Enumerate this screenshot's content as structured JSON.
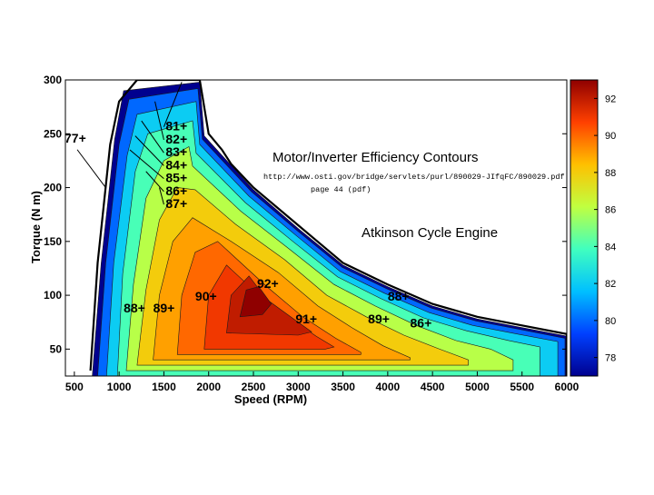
{
  "chart_data": {
    "type": "heatmap",
    "title": "Motor/Inverter Efficiency Contours",
    "source_url": "http://www.osti.gov/bridge/servlets/purl/890029-JIfqFC/890029.pdf",
    "source_page": "page 44 (pdf)",
    "annotation": "Atkinson Cycle Engine",
    "xlabel": "Speed (RPM)",
    "ylabel": "Torque (N m)",
    "xlim": [
      400,
      6000
    ],
    "ylim": [
      25,
      300
    ],
    "xticks": [
      "500",
      "1000",
      "1500",
      "2000",
      "2500",
      "3000",
      "3500",
      "4000",
      "4500",
      "5000",
      "5500",
      "6000"
    ],
    "yticks": [
      "50",
      "100",
      "150",
      "200",
      "250",
      "300"
    ],
    "colorbar": {
      "range": [
        77,
        93
      ],
      "ticks": [
        "78",
        "80",
        "82",
        "84",
        "86",
        "88",
        "90",
        "92"
      ],
      "colors": [
        "#00008f",
        "#0040ff",
        "#00c0ff",
        "#40ffbf",
        "#c0ff40",
        "#ffc000",
        "#ff4000",
        "#8f0000"
      ]
    },
    "max_torque_envelope": [
      [
        680,
        30
      ],
      [
        760,
        130
      ],
      [
        900,
        240
      ],
      [
        1000,
        280
      ],
      [
        1200,
        300
      ],
      [
        1900,
        300
      ],
      [
        2000,
        250
      ],
      [
        2150,
        235
      ],
      [
        2250,
        222
      ],
      [
        2500,
        200
      ],
      [
        3000,
        165
      ],
      [
        3500,
        130
      ],
      [
        4000,
        110
      ],
      [
        4500,
        92
      ],
      [
        5000,
        80
      ],
      [
        5500,
        72
      ],
      [
        6000,
        64
      ],
      [
        6000,
        25
      ]
    ],
    "contours": [
      {
        "level": 77,
        "points": [
          [
            700,
            25
          ],
          [
            800,
            130
          ],
          [
            950,
            245
          ],
          [
            1050,
            290
          ],
          [
            1900,
            298
          ],
          [
            1950,
            248
          ],
          [
            2500,
            198
          ],
          [
            3000,
            162
          ],
          [
            3500,
            128
          ],
          [
            4000,
            108
          ],
          [
            4500,
            90
          ],
          [
            5000,
            78
          ],
          [
            5500,
            70
          ],
          [
            6000,
            62
          ],
          [
            6000,
            25
          ]
        ]
      },
      {
        "level": 80,
        "points": [
          [
            760,
            25
          ],
          [
            850,
            130
          ],
          [
            1000,
            240
          ],
          [
            1110,
            282
          ],
          [
            1880,
            292
          ],
          [
            1930,
            245
          ],
          [
            2480,
            196
          ],
          [
            2990,
            160
          ],
          [
            3490,
            126
          ],
          [
            3990,
            106
          ],
          [
            4490,
            88
          ],
          [
            4990,
            76
          ],
          [
            5490,
            68
          ],
          [
            5980,
            60
          ],
          [
            5980,
            25
          ]
        ]
      },
      {
        "level": 82,
        "points": [
          [
            860,
            25
          ],
          [
            940,
            130
          ],
          [
            1090,
            230
          ],
          [
            1200,
            268
          ],
          [
            1860,
            280
          ],
          [
            1900,
            240
          ],
          [
            2450,
            192
          ],
          [
            2970,
            156
          ],
          [
            3470,
            122
          ],
          [
            3960,
            102
          ],
          [
            4460,
            84
          ],
          [
            4950,
            72
          ],
          [
            5450,
            64
          ],
          [
            5900,
            57
          ],
          [
            5900,
            25
          ]
        ]
      },
      {
        "level": 84,
        "points": [
          [
            980,
            25
          ],
          [
            1040,
            120
          ],
          [
            1180,
            215
          ],
          [
            1320,
            250
          ],
          [
            1820,
            262
          ],
          [
            1860,
            232
          ],
          [
            2410,
            186
          ],
          [
            2940,
            150
          ],
          [
            3440,
            117
          ],
          [
            3920,
            97
          ],
          [
            4400,
            79
          ],
          [
            4880,
            67
          ],
          [
            5350,
            58
          ],
          [
            5700,
            52
          ],
          [
            5700,
            25
          ]
        ]
      },
      {
        "level": 86,
        "points": [
          [
            1080,
            30
          ],
          [
            1160,
            110
          ],
          [
            1300,
            190
          ],
          [
            1500,
            225
          ],
          [
            1780,
            238
          ],
          [
            1820,
            220
          ],
          [
            2360,
            178
          ],
          [
            2900,
            143
          ],
          [
            3400,
            110
          ],
          [
            3860,
            90
          ],
          [
            4320,
            72
          ],
          [
            4760,
            58
          ],
          [
            5150,
            50
          ],
          [
            5400,
            40
          ],
          [
            5400,
            30
          ]
        ]
      },
      {
        "level": 88,
        "points": [
          [
            1200,
            35
          ],
          [
            1300,
            105
          ],
          [
            1450,
            170
          ],
          [
            1650,
            200
          ],
          [
            1850,
            198
          ],
          [
            2300,
            166
          ],
          [
            2850,
            133
          ],
          [
            3320,
            100
          ],
          [
            3760,
            80
          ],
          [
            4180,
            63
          ],
          [
            4580,
            50
          ],
          [
            4900,
            40
          ],
          [
            4900,
            35
          ]
        ]
      },
      {
        "level": 89,
        "points": [
          [
            1380,
            40
          ],
          [
            1450,
            100
          ],
          [
            1600,
            150
          ],
          [
            1820,
            172
          ],
          [
            2250,
            150
          ],
          [
            2780,
            121
          ],
          [
            3220,
            90
          ],
          [
            3600,
            70
          ],
          [
            3950,
            53
          ],
          [
            4250,
            42
          ],
          [
            4250,
            40
          ]
        ]
      },
      {
        "level": 90,
        "points": [
          [
            1650,
            45
          ],
          [
            1700,
            100
          ],
          [
            1850,
            140
          ],
          [
            2100,
            150
          ],
          [
            2650,
            108
          ],
          [
            3050,
            80
          ],
          [
            3420,
            60
          ],
          [
            3700,
            47
          ],
          [
            3700,
            45
          ]
        ]
      },
      {
        "level": 91,
        "points": [
          [
            1950,
            50
          ],
          [
            2000,
            100
          ],
          [
            2200,
            128
          ],
          [
            2500,
            105
          ],
          [
            2850,
            82
          ],
          [
            3200,
            62
          ],
          [
            3400,
            52
          ],
          [
            3300,
            50
          ]
        ]
      },
      {
        "level": 92,
        "points": [
          [
            2200,
            65
          ],
          [
            2250,
            100
          ],
          [
            2450,
            118
          ],
          [
            2650,
            96
          ],
          [
            2950,
            78
          ],
          [
            3150,
            66
          ],
          [
            3000,
            63
          ]
        ]
      },
      {
        "level": 93,
        "points": [
          [
            2350,
            80
          ],
          [
            2420,
            105
          ],
          [
            2560,
            108
          ],
          [
            2700,
            92
          ],
          [
            2600,
            82
          ]
        ]
      }
    ],
    "curve_labels": [
      {
        "text": "81+",
        "x": 1520,
        "y": 253
      },
      {
        "text": "82+",
        "x": 1520,
        "y": 241
      },
      {
        "text": "83+",
        "x": 1520,
        "y": 229
      },
      {
        "text": "84+",
        "x": 1520,
        "y": 217
      },
      {
        "text": "85+",
        "x": 1520,
        "y": 205
      },
      {
        "text": "86+",
        "x": 1520,
        "y": 193
      },
      {
        "text": "87+",
        "x": 1520,
        "y": 181
      },
      {
        "text": "77+",
        "x": 390,
        "y": 242
      },
      {
        "text": "92+",
        "x": 2540,
        "y": 107
      },
      {
        "text": "90+",
        "x": 1850,
        "y": 95
      },
      {
        "text": "88+",
        "x": 1050,
        "y": 84
      },
      {
        "text": "89+",
        "x": 1380,
        "y": 84
      },
      {
        "text": "91+",
        "x": 2970,
        "y": 74
      },
      {
        "text": "89+",
        "x": 3780,
        "y": 74
      },
      {
        "text": "88+",
        "x": 4000,
        "y": 95
      },
      {
        "text": "86+",
        "x": 4250,
        "y": 70
      }
    ]
  }
}
